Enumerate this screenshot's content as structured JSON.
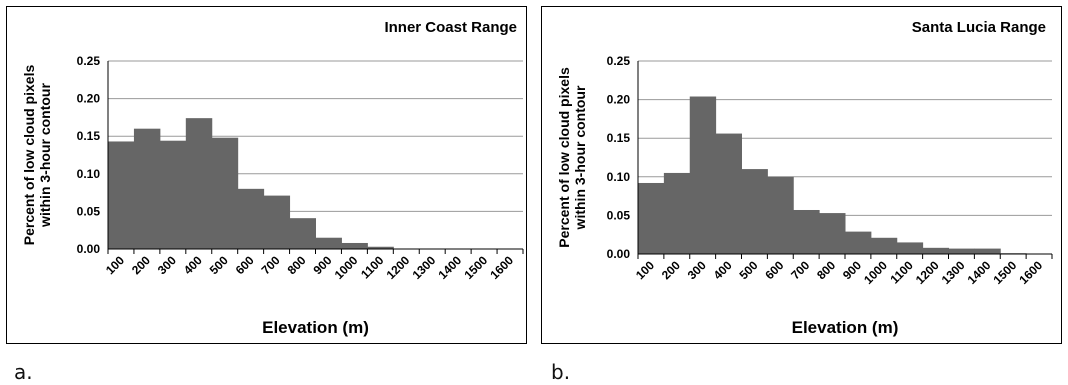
{
  "captions": [
    "a.",
    "b."
  ],
  "chart_data": [
    {
      "type": "bar",
      "title": "Inner Coast Range",
      "xlabel": "Elevation (m)",
      "ylabel_lines": [
        "Percent of low cloud pixels",
        "within 3-hour contour"
      ],
      "categories": [
        "100",
        "200",
        "300",
        "400",
        "500",
        "600",
        "700",
        "800",
        "900",
        "1000",
        "1100",
        "1200",
        "1300",
        "1400",
        "1500",
        "1600"
      ],
      "values": [
        0.143,
        0.16,
        0.144,
        0.174,
        0.148,
        0.08,
        0.071,
        0.041,
        0.015,
        0.008,
        0.003,
        0,
        0,
        0,
        0,
        0
      ],
      "yticks": [
        "0.00",
        "0.05",
        "0.10",
        "0.15",
        "0.20",
        "0.25"
      ],
      "ylim": [
        0,
        0.25
      ],
      "grid": true,
      "bar_color": "#666666"
    },
    {
      "type": "bar",
      "title": "Santa Lucia Range",
      "xlabel": "Elevation (m)",
      "ylabel_lines": [
        "Percent of low cloud pixels",
        "within 3-hour contour"
      ],
      "categories": [
        "100",
        "200",
        "300",
        "400",
        "500",
        "600",
        "700",
        "800",
        "900",
        "1000",
        "1100",
        "1200",
        "1300",
        "1400",
        "1500",
        "1600"
      ],
      "values": [
        0.092,
        0.105,
        0.204,
        0.156,
        0.11,
        0.1,
        0.057,
        0.053,
        0.029,
        0.021,
        0.015,
        0.008,
        0.007,
        0.007,
        0.001,
        0
      ],
      "yticks": [
        "0.00",
        "0.05",
        "0.10",
        "0.15",
        "0.20",
        "0.25"
      ],
      "ylim": [
        0,
        0.25
      ],
      "grid": true,
      "bar_color": "#666666"
    }
  ]
}
